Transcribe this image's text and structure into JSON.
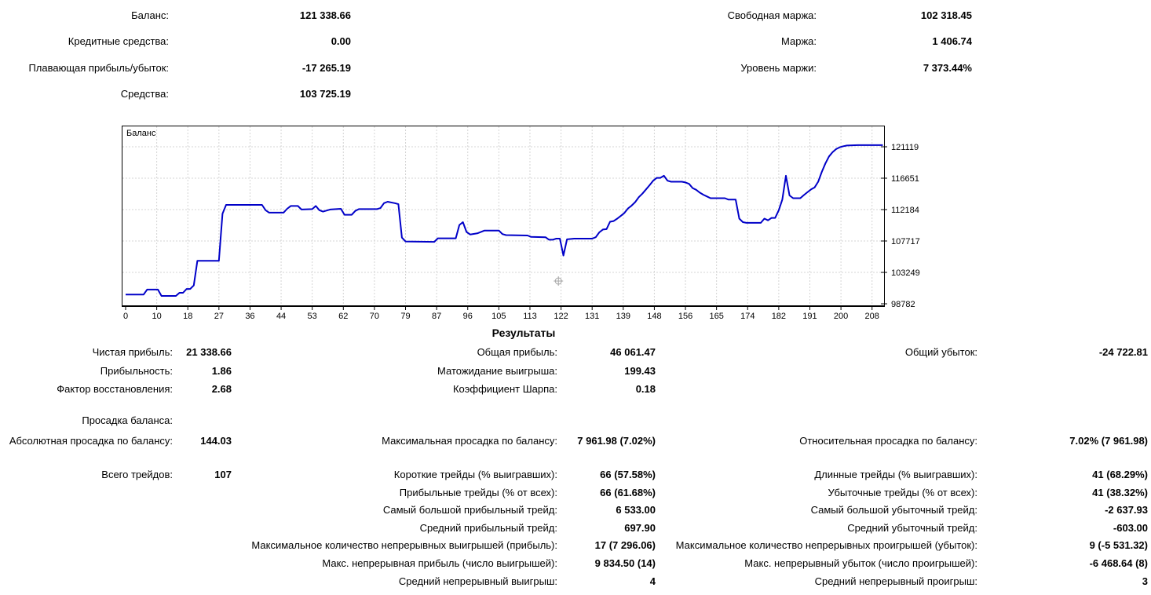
{
  "account_summary": {
    "left": [
      {
        "label": "Баланс:",
        "value": "121 338.66"
      },
      {
        "label": "Кредитные средства:",
        "value": "0.00"
      },
      {
        "label": "Плавающая прибыль/убыток:",
        "value": "-17 265.19"
      },
      {
        "label": "Средства:",
        "value": "103 725.19"
      }
    ],
    "right": [
      {
        "label": "Свободная маржа:",
        "value": "102 318.45"
      },
      {
        "label": "Маржа:",
        "value": "1 406.74"
      },
      {
        "label": "Уровень маржи:",
        "value": "7 373.44%"
      }
    ]
  },
  "results": {
    "title": "Результаты",
    "sections": [
      {
        "rows": [
          {
            "c1": {
              "label": "Чистая прибыль:",
              "value": "21 338.66"
            },
            "c2": {
              "label": "Общая прибыль:",
              "value": "46 061.47"
            },
            "c3": {
              "label": "Общий убыток:",
              "value": "-24 722.81"
            }
          },
          {
            "c1": {
              "label": "Прибыльность:",
              "value": "1.86"
            },
            "c2": {
              "label": "Матожидание выигрыша:",
              "value": "199.43"
            }
          },
          {
            "c1": {
              "label": "Фактор восстановления:",
              "value": "2.68"
            },
            "c2": {
              "label": "Коэффициент Шарпа:",
              "value": "0.18"
            }
          }
        ]
      },
      {
        "rows": [
          {
            "c1": {
              "label": "Просадка баланса:",
              "value": ""
            }
          },
          {
            "c1": {
              "label": "Абсолютная просадка по балансу:",
              "value": "144.03"
            },
            "c2": {
              "label": "Максимальная просадка по балансу:",
              "value": "7 961.98 (7.02%)"
            },
            "c3": {
              "label": "Относительная просадка по балансу:",
              "value": "7.02% (7 961.98)"
            }
          }
        ]
      },
      {
        "rows": [
          {
            "c1": {
              "label": "Всего трейдов:",
              "value": "107"
            },
            "c2": {
              "label": "Короткие трейды (% выигравших):",
              "value": "66 (57.58%)"
            },
            "c3": {
              "label": "Длинные трейды (% выигравших):",
              "value": "41 (68.29%)"
            }
          },
          {
            "c2": {
              "label": "Прибыльные трейды (% от всех):",
              "value": "66 (61.68%)"
            },
            "c3": {
              "label": "Убыточные трейды (% от всех):",
              "value": "41 (38.32%)"
            }
          },
          {
            "c2": {
              "label": "Самый большой прибыльный трейд:",
              "value": "6 533.00"
            },
            "c3": {
              "label": "Самый большой убыточный трейд:",
              "value": "-2 637.93"
            }
          },
          {
            "c2": {
              "label": "Средний прибыльный трейд:",
              "value": "697.90"
            },
            "c3": {
              "label": "Средний убыточный трейд:",
              "value": "-603.00"
            }
          },
          {
            "c2": {
              "label": "Максимальное количество непрерывных выигрышей (прибыль):",
              "value": "17 (7 296.06)"
            },
            "c3": {
              "label": "Максимальное количество непрерывных проигрышей (убыток):",
              "value": "9 (-5 531.32)"
            }
          },
          {
            "c2": {
              "label": "Макс. непрерывная прибыль (число выигрышей):",
              "value": "9 834.50 (14)"
            },
            "c3": {
              "label": "Макс. непрерывный убыток (число проигрышей):",
              "value": "-6 468.64 (8)"
            }
          },
          {
            "c2": {
              "label": "Средний непрерывный выигрыш:",
              "value": "4"
            },
            "c3": {
              "label": "Средний непрерывный проигрыш:",
              "value": "3"
            }
          }
        ]
      }
    ]
  },
  "chart_data": {
    "type": "line",
    "title": "Баланс",
    "xlabel": "",
    "ylabel": "",
    "x_ticks": [
      0,
      10,
      18,
      27,
      36,
      44,
      53,
      62,
      70,
      79,
      87,
      96,
      105,
      113,
      122,
      131,
      139,
      148,
      156,
      165,
      174,
      182,
      191,
      200,
      208
    ],
    "y_ticks": [
      98782,
      103249,
      107717,
      112184,
      116651,
      121119
    ],
    "x_range": [
      0,
      212
    ],
    "y_range": [
      98782,
      123950
    ],
    "grid": true,
    "line_color": "#0000c8",
    "legend_color": "#000080",
    "crosshair_color": "#a6a6a6",
    "crosshair_marker": {
      "x": 120.6,
      "y": 102020
    },
    "series": [
      {
        "name": "Баланс",
        "points": [
          [
            0,
            100100
          ],
          [
            5,
            100100
          ],
          [
            6,
            100800
          ],
          [
            9,
            100800
          ],
          [
            10,
            99900
          ],
          [
            14,
            99900
          ],
          [
            15,
            100350
          ],
          [
            16,
            100350
          ],
          [
            17,
            100900
          ],
          [
            18,
            100900
          ],
          [
            19,
            101400
          ],
          [
            20,
            104900
          ],
          [
            26,
            104900
          ],
          [
            27,
            111600
          ],
          [
            28,
            112850
          ],
          [
            38,
            112850
          ],
          [
            39,
            112100
          ],
          [
            40,
            111750
          ],
          [
            44,
            111750
          ],
          [
            45,
            112300
          ],
          [
            46,
            112700
          ],
          [
            48,
            112700
          ],
          [
            49,
            112200
          ],
          [
            52,
            112250
          ],
          [
            53,
            112700
          ],
          [
            54,
            112100
          ],
          [
            55,
            111900
          ],
          [
            57,
            112200
          ],
          [
            60,
            112300
          ],
          [
            61,
            111450
          ],
          [
            63,
            111450
          ],
          [
            64,
            112000
          ],
          [
            65,
            112250
          ],
          [
            70,
            112250
          ],
          [
            71,
            112400
          ],
          [
            72,
            113100
          ],
          [
            73,
            113300
          ],
          [
            75,
            113100
          ],
          [
            76,
            112950
          ],
          [
            77,
            108200
          ],
          [
            78,
            107650
          ],
          [
            86,
            107600
          ],
          [
            87,
            108100
          ],
          [
            92,
            108100
          ],
          [
            93,
            110000
          ],
          [
            94,
            110400
          ],
          [
            95,
            109000
          ],
          [
            96,
            108650
          ],
          [
            98,
            108800
          ],
          [
            100,
            109200
          ],
          [
            104,
            109200
          ],
          [
            105,
            108700
          ],
          [
            106,
            108550
          ],
          [
            112,
            108500
          ],
          [
            113,
            108300
          ],
          [
            117,
            108250
          ],
          [
            118,
            107900
          ],
          [
            119,
            107900
          ],
          [
            120,
            108050
          ],
          [
            121,
            108050
          ],
          [
            122,
            105650
          ],
          [
            123,
            107950
          ],
          [
            125,
            108050
          ],
          [
            130,
            108050
          ],
          [
            131,
            108250
          ],
          [
            132,
            108950
          ],
          [
            133,
            109350
          ],
          [
            134,
            109400
          ],
          [
            135,
            110450
          ],
          [
            136,
            110550
          ],
          [
            137,
            110900
          ],
          [
            138,
            111300
          ],
          [
            139,
            111700
          ],
          [
            140,
            112350
          ],
          [
            141,
            112750
          ],
          [
            142,
            113250
          ],
          [
            143,
            113950
          ],
          [
            144,
            114450
          ],
          [
            145,
            115050
          ],
          [
            146,
            115650
          ],
          [
            147,
            116300
          ],
          [
            148,
            116700
          ],
          [
            149,
            116700
          ],
          [
            150,
            117000
          ],
          [
            151,
            116300
          ],
          [
            152,
            116150
          ],
          [
            155,
            116150
          ],
          [
            156,
            116050
          ],
          [
            157,
            115850
          ],
          [
            158,
            115250
          ],
          [
            159,
            115000
          ],
          [
            160,
            114600
          ],
          [
            161,
            114300
          ],
          [
            162,
            114050
          ],
          [
            163,
            113800
          ],
          [
            167,
            113800
          ],
          [
            168,
            113600
          ],
          [
            170,
            113600
          ],
          [
            171,
            110900
          ],
          [
            172,
            110400
          ],
          [
            173,
            110300
          ],
          [
            177,
            110300
          ],
          [
            178,
            110900
          ],
          [
            179,
            110650
          ],
          [
            180,
            111000
          ],
          [
            181,
            111000
          ],
          [
            182,
            112100
          ],
          [
            183,
            113600
          ],
          [
            184,
            117000
          ],
          [
            185,
            114200
          ],
          [
            186,
            113800
          ],
          [
            188,
            113800
          ],
          [
            189,
            114250
          ],
          [
            190,
            114650
          ],
          [
            191,
            115050
          ],
          [
            192,
            115350
          ],
          [
            193,
            116150
          ],
          [
            194,
            117550
          ],
          [
            195,
            118750
          ],
          [
            196,
            119750
          ],
          [
            197,
            120350
          ],
          [
            198,
            120800
          ],
          [
            199,
            121050
          ],
          [
            200,
            121200
          ],
          [
            201,
            121300
          ],
          [
            204,
            121350
          ],
          [
            211,
            121350
          ]
        ]
      }
    ]
  }
}
